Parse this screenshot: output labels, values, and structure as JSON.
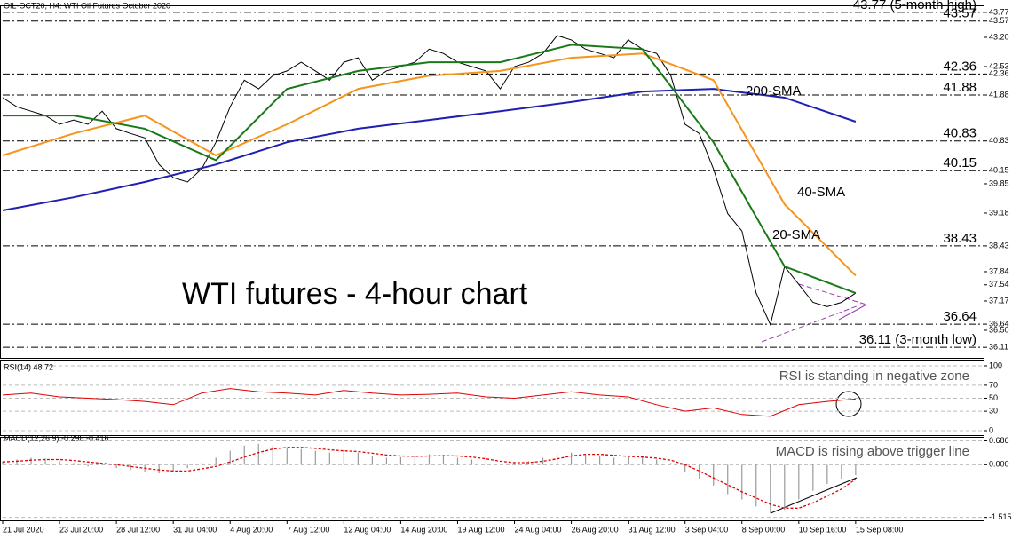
{
  "chart_data": [
    {
      "type": "line",
      "title": "OIL-OCT20, H4:  WTI Oil Futures October 2020",
      "annotation": "WTI futures - 4-hour chart",
      "xlim": [
        0,
        276
      ],
      "xticks": [
        {
          "value": 0,
          "label": "21 Jul 2020"
        },
        {
          "value": 16,
          "label": "23 Jul 20:00"
        },
        {
          "value": 32,
          "label": "28 Jul 12:00"
        },
        {
          "value": 48,
          "label": "31 Jul 04:00"
        },
        {
          "value": 64,
          "label": "4 Aug 20:00"
        },
        {
          "value": 80,
          "label": "7 Aug 12:00"
        },
        {
          "value": 96,
          "label": "12 Aug 04:00"
        },
        {
          "value": 112,
          "label": "14 Aug 20:00"
        },
        {
          "value": 128,
          "label": "19 Aug 12:00"
        },
        {
          "value": 144,
          "label": "24 Aug 04:00"
        },
        {
          "value": 160,
          "label": "26 Aug 20:00"
        },
        {
          "value": 176,
          "label": "31 Aug 12:00"
        },
        {
          "value": 192,
          "label": "3 Sep 04:00"
        },
        {
          "value": 208,
          "label": "8 Sep 00:00"
        },
        {
          "value": 224,
          "label": "10 Sep 16:00"
        },
        {
          "value": 240,
          "label": "15 Sep 08:00"
        }
      ],
      "ylim": [
        35.87,
        43.89
      ],
      "yticks": [
        43.77,
        43.57,
        {
          "value": 43.2,
          "label": "43.20"
        },
        42.53,
        42.36,
        41.88,
        40.83,
        40.15,
        39.85,
        39.18,
        38.43,
        37.84,
        37.54,
        37.17,
        36.64,
        {
          "value": 36.5,
          "label": "36.50"
        },
        36.11
      ],
      "levels": [
        43.77,
        43.57,
        42.36,
        41.88,
        40.83,
        40.15,
        38.43,
        36.64,
        36.11
      ],
      "level_labels": [
        "43.77 (5-month high)",
        "43.57",
        "42.36",
        "41.88",
        "40.83",
        "40.15",
        "38.43",
        "36.64",
        "36.11 (3-month low)"
      ],
      "level_colors": [
        "#e8262a",
        "#e8262a",
        "#e8262a",
        "#e8262a",
        "#e8262a",
        "#e8262a",
        "#e8262a",
        "#2e9a2e",
        "#2e9a2e"
      ],
      "series": [
        {
          "color": "#000000",
          "x": [
            0,
            4,
            8,
            12,
            16,
            20,
            24,
            28,
            32,
            36,
            40,
            44,
            48,
            52,
            56,
            60,
            64,
            68,
            72,
            76,
            80,
            84,
            88,
            92,
            96,
            100,
            104,
            108,
            112,
            116,
            120,
            124,
            128,
            132,
            136,
            140,
            144,
            148,
            152,
            156,
            160,
            164,
            168,
            172,
            176,
            180,
            184,
            188,
            192,
            196,
            200,
            204,
            208,
            212,
            216,
            220,
            224,
            228,
            232,
            236,
            240
          ],
          "values": [
            41.82,
            41.61,
            41.51,
            41.41,
            41.21,
            41.31,
            41.21,
            41.51,
            41.11,
            41.0,
            40.9,
            40.29,
            39.99,
            39.89,
            40.19,
            40.8,
            41.61,
            42.22,
            42.02,
            42.32,
            42.43,
            42.63,
            42.43,
            42.22,
            42.63,
            42.73,
            42.22,
            42.43,
            42.53,
            42.63,
            42.93,
            42.83,
            42.63,
            42.53,
            42.43,
            42.02,
            42.53,
            42.63,
            42.83,
            43.24,
            43.14,
            42.93,
            42.83,
            42.73,
            43.14,
            42.93,
            42.83,
            42.32,
            41.21,
            41.0,
            40.19,
            39.17,
            38.77,
            37.35,
            36.63,
            37.96,
            37.55,
            37.14,
            37.04,
            37.14,
            37.35
          ]
        },
        {
          "name": "200-SMA",
          "color": "#1f1fb4",
          "x": [
            0,
            20,
            40,
            60,
            80,
            100,
            120,
            140,
            160,
            180,
            200,
            220,
            240
          ],
          "values": [
            39.24,
            39.54,
            39.89,
            40.29,
            40.8,
            41.11,
            41.31,
            41.51,
            41.72,
            41.96,
            42.02,
            41.82,
            41.27
          ]
        },
        {
          "name": "40-SMA",
          "color": "#f5951d",
          "x": [
            0,
            20,
            40,
            60,
            80,
            100,
            120,
            140,
            160,
            180,
            200,
            220,
            240
          ],
          "values": [
            40.5,
            41.0,
            41.41,
            40.5,
            41.21,
            42.02,
            42.32,
            42.43,
            42.73,
            42.83,
            42.22,
            39.38,
            37.75
          ]
        },
        {
          "name": "20-SMA",
          "color": "#1a7a1a",
          "x": [
            0,
            20,
            40,
            60,
            80,
            100,
            120,
            140,
            160,
            180,
            200,
            220,
            240
          ],
          "values": [
            41.41,
            41.41,
            41.11,
            40.39,
            42.02,
            42.43,
            42.63,
            42.63,
            43.03,
            42.93,
            40.8,
            37.96,
            37.35
          ]
        }
      ]
    },
    {
      "type": "line",
      "title": "RSI(14) 48.72",
      "annotation": "RSI is standing in negative zone",
      "xlim": [
        0,
        276
      ],
      "ylim": [
        0,
        100
      ],
      "yticks": [
        0,
        30,
        50,
        70,
        100
      ],
      "series": [
        {
          "color": "#e00000",
          "x": [
            0,
            8,
            16,
            24,
            32,
            40,
            48,
            56,
            64,
            72,
            80,
            88,
            96,
            104,
            112,
            120,
            128,
            136,
            144,
            152,
            160,
            168,
            176,
            184,
            192,
            200,
            208,
            216,
            224,
            232,
            240
          ],
          "values": [
            55,
            58,
            52,
            50,
            48,
            45,
            40,
            58,
            65,
            60,
            58,
            55,
            62,
            58,
            55,
            56,
            58,
            52,
            50,
            55,
            60,
            55,
            52,
            40,
            30,
            35,
            25,
            22,
            40,
            45,
            48.72
          ]
        }
      ]
    },
    {
      "type": "macd",
      "title": "MACD(12,26,9) -0.298 -0.416",
      "annotation": "MACD is rising above trigger line",
      "xlim": [
        0,
        276
      ],
      "ylim": [
        -1.6,
        0.8
      ],
      "yticks": [
        0.686,
        {
          "value": 0,
          "label": "0.000"
        },
        -1.515
      ],
      "series": [
        {
          "color": "#9a9a9a",
          "x": [
            0,
            4,
            8,
            12,
            16,
            20,
            24,
            28,
            32,
            36,
            40,
            44,
            48,
            52,
            56,
            60,
            64,
            68,
            72,
            76,
            80,
            84,
            88,
            92,
            96,
            100,
            104,
            108,
            112,
            116,
            120,
            124,
            128,
            132,
            136,
            140,
            144,
            148,
            152,
            156,
            160,
            164,
            168,
            172,
            176,
            180,
            184,
            188,
            192,
            196,
            200,
            204,
            208,
            212,
            216,
            220,
            224,
            228,
            232,
            236,
            240
          ],
          "values": [
            0.1,
            0.15,
            0.2,
            0.18,
            0.1,
            0.05,
            -0.05,
            -0.02,
            -0.1,
            -0.15,
            -0.2,
            -0.25,
            -0.2,
            -0.1,
            0.05,
            0.2,
            0.4,
            0.55,
            0.6,
            0.55,
            0.5,
            0.45,
            0.4,
            0.35,
            0.4,
            0.35,
            0.25,
            0.2,
            0.22,
            0.25,
            0.3,
            0.28,
            0.2,
            0.15,
            0.1,
            0.0,
            0.05,
            0.1,
            0.2,
            0.3,
            0.35,
            0.3,
            0.25,
            0.2,
            0.22,
            0.2,
            0.15,
            0.05,
            -0.2,
            -0.4,
            -0.6,
            -0.85,
            -1.0,
            -1.2,
            -1.4,
            -1.3,
            -1.0,
            -0.75,
            -0.55,
            -0.4,
            -0.298
          ]
        },
        {
          "color": "#e00000",
          "x": [
            0,
            4,
            8,
            12,
            16,
            20,
            24,
            28,
            32,
            36,
            40,
            44,
            48,
            52,
            56,
            60,
            64,
            68,
            72,
            76,
            80,
            84,
            88,
            92,
            96,
            100,
            104,
            108,
            112,
            116,
            120,
            124,
            128,
            132,
            136,
            140,
            144,
            148,
            152,
            156,
            160,
            164,
            168,
            172,
            176,
            180,
            184,
            188,
            192,
            196,
            200,
            204,
            208,
            212,
            216,
            220,
            224,
            228,
            232,
            236,
            240
          ],
          "values": [
            0.08,
            0.1,
            0.13,
            0.15,
            0.15,
            0.12,
            0.08,
            0.04,
            0.0,
            -0.05,
            -0.1,
            -0.15,
            -0.18,
            -0.18,
            -0.12,
            -0.05,
            0.08,
            0.22,
            0.35,
            0.45,
            0.5,
            0.5,
            0.47,
            0.43,
            0.4,
            0.38,
            0.33,
            0.28,
            0.25,
            0.24,
            0.25,
            0.26,
            0.25,
            0.22,
            0.17,
            0.1,
            0.06,
            0.06,
            0.1,
            0.17,
            0.25,
            0.3,
            0.3,
            0.27,
            0.24,
            0.22,
            0.19,
            0.13,
            0.0,
            -0.18,
            -0.38,
            -0.58,
            -0.78,
            -0.96,
            -1.14,
            -1.25,
            -1.25,
            -1.1,
            -0.9,
            -0.7,
            -0.416
          ]
        }
      ]
    }
  ]
}
